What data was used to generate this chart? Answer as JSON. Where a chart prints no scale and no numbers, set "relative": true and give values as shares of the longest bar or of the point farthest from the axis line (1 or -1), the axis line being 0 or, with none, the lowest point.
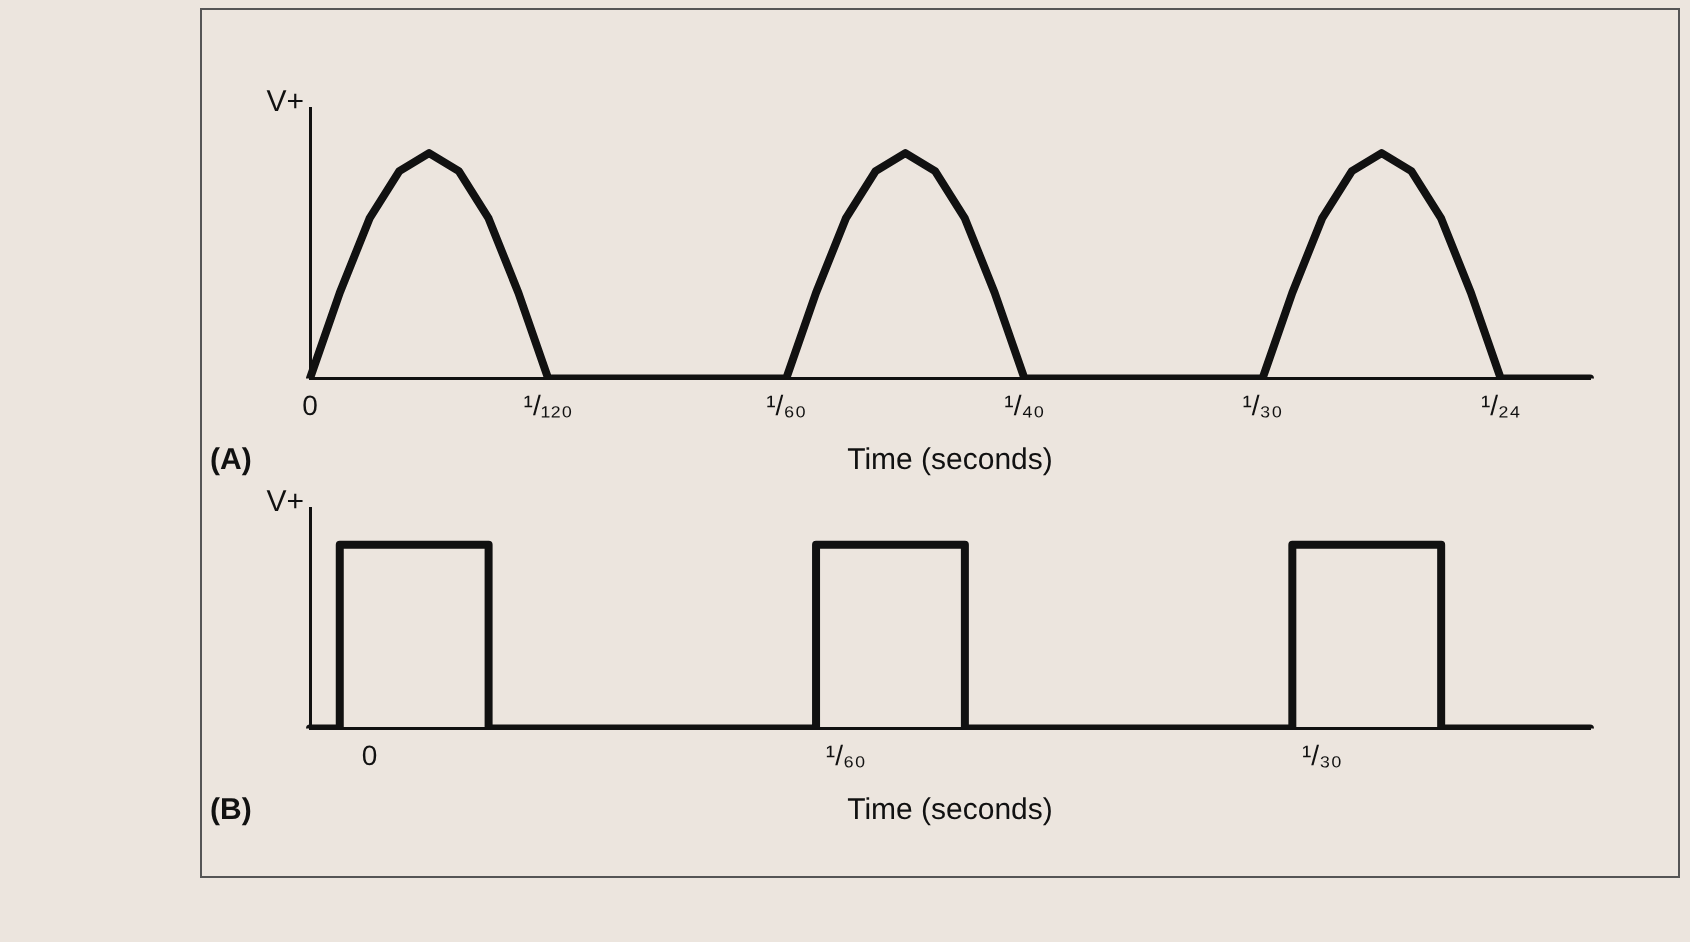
{
  "chart_data": [
    {
      "type": "line",
      "title": "(A)",
      "xlabel": "Time (seconds)",
      "ylabel": "V+",
      "relative": true,
      "marker": "none",
      "line_style": "solid",
      "grid": false,
      "legend": false,
      "categories": [
        "0",
        null,
        null,
        null,
        null,
        null,
        null,
        null,
        "¹/₁₂₀",
        null,
        null,
        null,
        null,
        null,
        null,
        null,
        "¹/₆₀",
        null,
        null,
        null,
        null,
        null,
        null,
        null,
        "¹/₄₀",
        null,
        null,
        null,
        null,
        null,
        null,
        null,
        "¹/₃₀",
        null,
        null,
        null,
        null,
        null,
        null,
        null,
        "¹/₂₄",
        null,
        null,
        null
      ],
      "series": [
        {
          "color": "#111111",
          "values": [
            0,
            0.38,
            0.71,
            0.92,
            1,
            0.92,
            0.71,
            0.38,
            0,
            0,
            0,
            0,
            0,
            0,
            0,
            0,
            0,
            0.38,
            0.71,
            0.92,
            1,
            0.92,
            0.71,
            0.38,
            0,
            0,
            0,
            0,
            0,
            0,
            0,
            0,
            0,
            0.38,
            0.71,
            0.92,
            1,
            0.92,
            0.71,
            0.38,
            0,
            0,
            0,
            0
          ]
        }
      ]
    },
    {
      "type": "step",
      "title": "(B)",
      "xlabel": "Time (seconds)",
      "ylabel": "V+",
      "relative": true,
      "marker": "none",
      "line_style": "solid",
      "grid": false,
      "legend": false,
      "categories": [
        null,
        null,
        "0",
        null,
        null,
        null,
        null,
        null,
        null,
        null,
        null,
        null,
        null,
        null,
        null,
        null,
        null,
        null,
        "¹/₆₀",
        null,
        null,
        null,
        null,
        null,
        null,
        null,
        null,
        null,
        null,
        null,
        null,
        null,
        null,
        null,
        "¹/₃₀",
        null,
        null,
        null,
        null,
        null,
        null,
        null,
        null,
        null
      ],
      "series": [
        {
          "color": "#111111",
          "values": [
            0,
            0,
            1,
            1,
            1,
            1,
            1,
            0,
            0,
            0,
            0,
            0,
            0,
            0,
            0,
            0,
            0,
            0,
            1,
            1,
            1,
            1,
            1,
            0,
            0,
            0,
            0,
            0,
            0,
            0,
            0,
            0,
            0,
            0,
            1,
            1,
            1,
            1,
            1,
            0,
            0,
            0,
            0,
            0
          ]
        }
      ]
    }
  ]
}
